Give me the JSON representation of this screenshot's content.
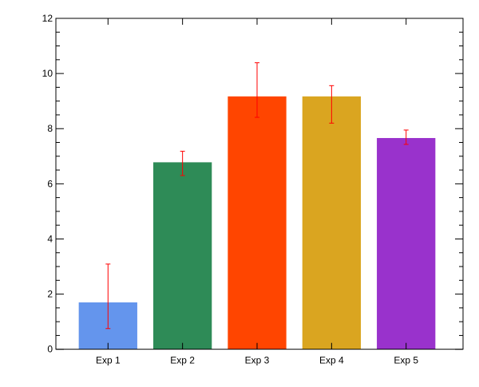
{
  "chart_data": {
    "type": "bar",
    "title": "",
    "xlabel": "",
    "ylabel": "",
    "categories": [
      "Exp 1",
      "Exp 2",
      "Exp 3",
      "Exp 4",
      "Exp 5"
    ],
    "values": [
      1.7,
      6.78,
      9.17,
      9.17,
      7.66
    ],
    "error_upper": [
      3.09,
      7.18,
      10.39,
      9.56,
      7.95
    ],
    "error_lower": [
      0.75,
      6.3,
      8.41,
      8.2,
      7.43
    ],
    "colors": [
      "#6495ED",
      "#2E8B57",
      "#FF4500",
      "#DAA520",
      "#9932CC"
    ],
    "error_color": "#FF0000",
    "ylim": [
      0,
      12
    ],
    "yticks": [
      0,
      2,
      4,
      6,
      8,
      10,
      12
    ],
    "grid": false
  }
}
